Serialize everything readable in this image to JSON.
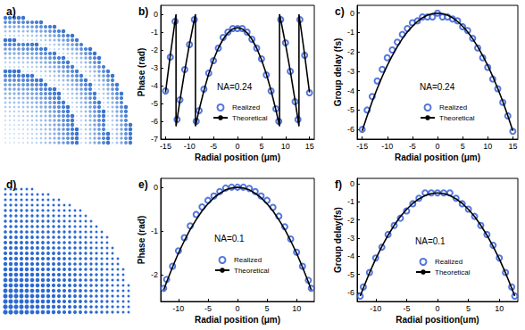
{
  "pattern_panels": [
    {
      "label": "a)"
    },
    {
      "label": "d)"
    }
  ],
  "chart_data": [
    {
      "type": "line",
      "title": "b)",
      "x_label": "Radial position (μm)",
      "y_label": "Phase (rad)",
      "annotations": [
        "NA=0.24"
      ],
      "xlim": [
        -16,
        16
      ],
      "xticks": [
        -15,
        -10,
        -5,
        0,
        5,
        10,
        15
      ],
      "ylim": [
        -7,
        0.5
      ],
      "yticks": [
        -7,
        -6,
        -5,
        -4,
        -3,
        -2,
        -1,
        0
      ],
      "grid": false,
      "legend": "bottom",
      "series": [
        {
          "name": "Realized",
          "type": "scatter",
          "marker": "open_circle",
          "color": "#2b55d4",
          "x": [
            -15,
            -14,
            -13,
            -12.6,
            -12,
            -11,
            -10,
            -9,
            -8.6,
            -8,
            -7,
            -6,
            -5,
            -4,
            -3,
            -2,
            -1,
            0,
            1,
            2,
            3,
            4,
            5,
            6,
            7,
            8,
            8.6,
            9,
            10,
            11,
            12,
            12.6,
            13,
            14,
            15
          ],
          "values": [
            -4.3,
            -2.4,
            -0.4,
            -5.9,
            -4.8,
            -3.1,
            -1.7,
            -0.3,
            -6.0,
            -5.4,
            -4.2,
            -3.3,
            -2.6,
            -1.9,
            -1.3,
            -1.0,
            -0.8,
            -0.8,
            -0.8,
            -1.0,
            -1.4,
            -1.9,
            -2.5,
            -3.4,
            -4.3,
            -5.3,
            -6.0,
            -0.3,
            -1.6,
            -3.2,
            -4.9,
            -5.9,
            -0.3,
            -2.3,
            -4.4
          ]
        },
        {
          "name": "Theoretical",
          "type": "line",
          "line_style": "solid",
          "color": "#000000",
          "x": [
            -15,
            -14,
            -13,
            -12.81,
            -12.81,
            -12,
            -11,
            -10,
            -9,
            -8.76,
            -8.76,
            -8,
            -7,
            -6,
            -5,
            -4,
            -3,
            -2,
            -1,
            0,
            1,
            2,
            3,
            4,
            5,
            6,
            7,
            8,
            8.76,
            8.76,
            9,
            10,
            11,
            12,
            12.81,
            12.81,
            13,
            14,
            15
          ],
          "values": [
            -4.38,
            -2.29,
            -0.35,
            0,
            -6.28,
            -4.84,
            -3.18,
            -1.67,
            -0.3,
            0,
            -6.28,
            -5.36,
            -4.28,
            -3.34,
            -2.55,
            -1.9,
            -1.4,
            -1.04,
            -0.82,
            -0.75,
            -0.82,
            -1.04,
            -1.4,
            -1.9,
            -2.55,
            -3.34,
            -4.28,
            -5.36,
            -6.28,
            0,
            -0.3,
            -1.67,
            -3.18,
            -4.84,
            -6.28,
            0,
            -0.35,
            -2.29,
            -4.38
          ]
        }
      ]
    },
    {
      "type": "line",
      "title": "c)",
      "x_label": "Radial position (μm)",
      "y_label": "Group delay (fs)",
      "annotations": [
        "NA=0.24"
      ],
      "xlim": [
        -16,
        16
      ],
      "xticks": [
        -15,
        -10,
        -5,
        0,
        5,
        10,
        15
      ],
      "ylim": [
        -6.5,
        0.4
      ],
      "yticks": [
        -6,
        -5,
        -4,
        -3,
        -2,
        -1,
        0
      ],
      "grid": false,
      "legend": "bottom",
      "series": [
        {
          "name": "Realized",
          "type": "scatter",
          "marker": "open_circle",
          "color": "#2b55d4",
          "x": [
            -15,
            -14,
            -13,
            -12,
            -11,
            -10,
            -9,
            -8,
            -7,
            -6,
            -5,
            -4,
            -3,
            -2,
            -1,
            0,
            1,
            2,
            3,
            4,
            5,
            6,
            7,
            8,
            9,
            10,
            11,
            12,
            13,
            14,
            15
          ],
          "values": [
            -6.0,
            -5.0,
            -4.3,
            -3.5,
            -2.9,
            -2.3,
            -1.9,
            -1.5,
            -1.1,
            -0.8,
            -0.5,
            -0.4,
            -0.2,
            -0.2,
            -0.2,
            0,
            -0.2,
            -0.2,
            -0.3,
            -0.4,
            -0.7,
            -0.9,
            -1.3,
            -1.8,
            -2.3,
            -2.8,
            -3.4,
            -3.9,
            -4.6,
            -5.3,
            -6.1
          ]
        },
        {
          "name": "Theoretical",
          "type": "line",
          "line_style": "solid",
          "color": "#000000",
          "x": [
            -15,
            -14,
            -13,
            -12,
            -11,
            -10,
            -9,
            -8,
            -7,
            -6,
            -5,
            -4,
            -3,
            -2,
            -1,
            0,
            1,
            2,
            3,
            4,
            5,
            6,
            7,
            8,
            9,
            10,
            11,
            12,
            13,
            14,
            15
          ],
          "values": [
            -6.08,
            -5.29,
            -4.56,
            -3.89,
            -3.27,
            -2.7,
            -2.19,
            -1.73,
            -1.32,
            -0.97,
            -0.68,
            -0.43,
            -0.24,
            -0.11,
            -0.03,
            0,
            -0.03,
            -0.11,
            -0.24,
            -0.43,
            -0.68,
            -0.97,
            -1.32,
            -1.73,
            -2.19,
            -2.7,
            -3.27,
            -3.89,
            -4.56,
            -5.29,
            -6.08
          ]
        }
      ]
    },
    {
      "type": "line",
      "title": "e)",
      "x_label": "Radial position (μm)",
      "y_label": "Phase (rad)",
      "annotations": [
        "NA=0.1"
      ],
      "xlim": [
        -13,
        13
      ],
      "xticks": [
        -10,
        -5,
        0,
        5,
        10
      ],
      "ylim": [
        -2.6,
        0.2
      ],
      "yticks": [
        -2,
        -1,
        0
      ],
      "grid": false,
      "legend": "bottom",
      "series": [
        {
          "name": "Realized",
          "type": "scatter",
          "marker": "open_circle",
          "color": "#2b55d4",
          "x": [
            -12.5,
            -12,
            -11,
            -10,
            -9,
            -8,
            -7,
            -6,
            -5,
            -4,
            -3,
            -2,
            -1,
            0,
            1,
            2,
            3,
            4,
            5,
            6,
            7,
            8,
            9,
            10,
            11,
            12,
            12.5
          ],
          "values": [
            -2.3,
            -2.1,
            -1.8,
            -1.45,
            -1.15,
            -0.88,
            -0.62,
            -0.45,
            -0.3,
            -0.2,
            -0.1,
            -0.02,
            0,
            0,
            0,
            -0.03,
            -0.1,
            -0.2,
            -0.3,
            -0.46,
            -0.66,
            -0.9,
            -1.18,
            -1.48,
            -1.8,
            -2.12,
            -2.3
          ]
        },
        {
          "name": "Theoretical",
          "type": "line",
          "line_style": "solid",
          "color": "#000000",
          "x": [
            -12.5,
            -12,
            -11,
            -10,
            -9,
            -8,
            -7,
            -6,
            -5,
            -4,
            -3,
            -2,
            -1,
            0,
            1,
            2,
            3,
            4,
            5,
            6,
            7,
            8,
            9,
            10,
            11,
            12,
            12.5
          ],
          "values": [
            -2.34,
            -2.16,
            -1.82,
            -1.5,
            -1.22,
            -0.96,
            -0.74,
            -0.54,
            -0.38,
            -0.24,
            -0.14,
            -0.06,
            -0.02,
            0,
            -0.02,
            -0.06,
            -0.14,
            -0.24,
            -0.38,
            -0.54,
            -0.74,
            -0.96,
            -1.22,
            -1.5,
            -1.82,
            -2.16,
            -2.34
          ]
        }
      ]
    },
    {
      "type": "line",
      "title": "f)",
      "x_label": "Radial position(um)",
      "y_label": "Group delay(fs)",
      "annotations": [
        "NA=0.1"
      ],
      "xlim": [
        -13,
        13
      ],
      "xticks": [
        -10,
        -5,
        0,
        5,
        10
      ],
      "ylim": [
        -6.5,
        0.3
      ],
      "yticks": [
        -6,
        -5,
        -4,
        -3,
        -2,
        -1,
        0
      ],
      "grid": false,
      "legend": "bottom",
      "series": [
        {
          "name": "Realized",
          "type": "scatter",
          "marker": "open_circle",
          "color": "#2b55d4",
          "x": [
            -12.5,
            -12,
            -11,
            -10,
            -9,
            -8,
            -7,
            -6,
            -5,
            -4,
            -3,
            -2,
            -1,
            0,
            1,
            2,
            3,
            4,
            5,
            6,
            7,
            8,
            9,
            10,
            11,
            12,
            12.5
          ],
          "values": [
            -6.2,
            -5.7,
            -4.9,
            -4.1,
            -3.5,
            -2.8,
            -2.3,
            -1.9,
            -1.5,
            -1.1,
            -0.8,
            -0.5,
            -0.5,
            -0.5,
            -0.5,
            -0.5,
            -0.8,
            -1.1,
            -1.4,
            -1.8,
            -2.3,
            -2.8,
            -3.4,
            -4.1,
            -4.9,
            -5.7,
            -6.2
          ]
        },
        {
          "name": "Theoretical",
          "type": "line",
          "line_style": "solid",
          "color": "#000000",
          "x": [
            -12.5,
            -12,
            -11,
            -10,
            -9,
            -8,
            -7,
            -6,
            -5,
            -4,
            -3,
            -2,
            -1,
            0,
            1,
            2,
            3,
            4,
            5,
            6,
            7,
            8,
            9,
            10,
            11,
            12,
            12.5
          ],
          "values": [
            -6.2,
            -5.76,
            -4.92,
            -4.15,
            -3.46,
            -2.84,
            -2.29,
            -1.81,
            -1.41,
            -1.08,
            -0.83,
            -0.65,
            -0.54,
            -0.5,
            -0.54,
            -0.65,
            -0.83,
            -1.08,
            -1.41,
            -1.81,
            -2.29,
            -2.84,
            -3.46,
            -4.15,
            -4.92,
            -5.76,
            -6.2
          ]
        }
      ]
    }
  ]
}
